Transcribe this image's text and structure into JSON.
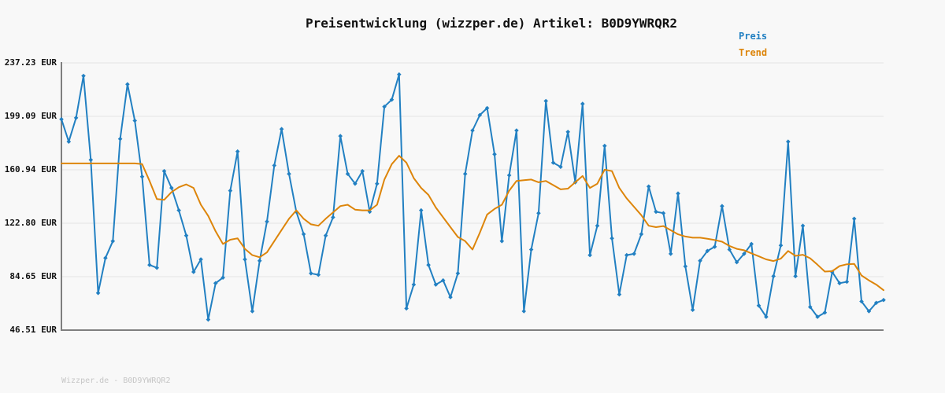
{
  "title": "Preisentwicklung (wizzper.de) Artikel: B0D9YWRQR2",
  "legend": {
    "preis_label": "Preis",
    "trend_label": "Trend"
  },
  "footer": "Wizzper.de - B0D9YWRQR2",
  "colors": {
    "background": "#f8f8f8",
    "preis": "#2280c2",
    "trend": "#dd850a",
    "axis": "#7f7f7f",
    "grid": "#e5e5e5",
    "title_text": "#111111",
    "tick_text": "#111111",
    "footer_text": "#c6c6c6"
  },
  "y_axis": {
    "unit": "EUR",
    "min": 46.51,
    "max": 237.23,
    "tick_values": [
      237.23,
      199.09,
      160.94,
      122.8,
      84.65,
      46.51
    ],
    "tick_labels": [
      "237.23 EUR",
      "199.09 EUR",
      "160.94 EUR",
      "122.80 EUR",
      "84.65 EUR",
      "46.51 EUR"
    ]
  },
  "chart_data": {
    "type": "line",
    "title": "Preisentwicklung (wizzper.de) Artikel: B0D9YWRQR2",
    "xlabel": "",
    "ylabel": "EUR",
    "ylim": [
      46.51,
      237.23
    ],
    "grid": true,
    "legend_position": "top-right",
    "x_axis_labels_visible": false,
    "series": [
      {
        "name": "Preis",
        "color": "#2280c2",
        "marker": "diamond",
        "values": [
          197,
          181,
          198,
          228,
          168,
          73,
          98,
          110,
          183,
          222,
          196,
          156,
          93,
          91,
          160,
          148,
          132,
          114,
          88,
          97,
          54,
          80,
          84,
          146,
          174,
          97,
          60,
          96,
          124,
          164,
          190,
          158,
          131,
          115,
          87,
          86,
          114,
          127,
          185,
          158,
          151,
          160,
          131,
          151,
          206,
          211,
          229,
          62,
          79,
          132,
          93,
          79,
          82,
          70,
          87,
          158,
          189,
          200,
          205,
          172,
          110,
          157,
          189,
          60,
          104,
          130,
          210,
          166,
          163,
          188,
          152,
          208,
          100,
          121,
          178,
          112,
          72,
          100,
          101,
          115,
          149,
          131,
          130,
          101,
          144,
          92,
          61,
          96,
          103,
          106,
          135,
          104,
          95,
          101,
          108,
          64,
          56,
          85,
          107,
          181,
          85,
          121,
          63,
          56,
          59,
          88,
          80,
          81,
          126,
          67,
          60,
          66,
          68
        ]
      },
      {
        "name": "Trend",
        "color": "#dd850a",
        "marker": "none",
        "values": [
          165.5,
          165.5,
          165.5,
          165.5,
          165.5,
          165.5,
          165.5,
          165.5,
          165.5,
          165.5,
          165.5,
          165,
          153,
          140,
          139.5,
          145,
          148.5,
          150.5,
          148,
          136,
          128,
          117,
          108,
          111,
          112,
          104.5,
          100,
          98.5,
          102,
          110,
          118,
          126,
          132,
          126,
          122,
          121,
          126,
          130.5,
          135,
          136,
          132.5,
          132,
          132,
          136,
          154,
          165,
          171,
          166,
          155,
          148,
          143,
          134,
          127,
          120,
          113,
          110,
          104,
          116,
          129,
          133,
          136,
          146,
          153,
          153.5,
          154,
          152,
          153,
          150,
          147,
          147.5,
          152,
          156.5,
          148,
          151,
          161,
          160,
          148,
          140.5,
          134.5,
          128.5,
          121,
          120,
          120.8,
          117.8,
          114.9,
          113.3,
          112.5,
          112.5,
          111.7,
          110.8,
          109.6,
          106.6,
          104.5,
          103.5,
          101.3,
          99.2,
          97,
          95.8,
          97.5,
          103,
          99.5,
          100.3,
          97.8,
          93.2,
          88.3,
          88.6,
          92.2,
          93.5,
          93.8,
          85.5,
          82,
          79,
          75
        ]
      }
    ]
  }
}
